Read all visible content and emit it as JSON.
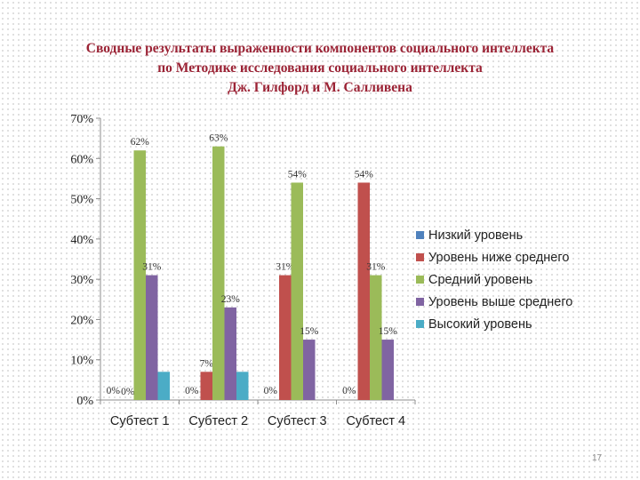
{
  "title_lines": [
    "Сводные результаты выраженности компонентов социального интеллекта",
    "по Методике исследования социального интеллекта",
    "Дж. Гилфорд и М. Салливена"
  ],
  "page_number": "17",
  "chart_data": {
    "type": "bar",
    "title": "",
    "xlabel": "",
    "ylabel": "",
    "ylim": [
      0,
      70
    ],
    "yticks": [
      "0%",
      "10%",
      "20%",
      "30%",
      "40%",
      "50%",
      "60%",
      "70%"
    ],
    "categories": [
      "Субтест 1",
      "Субтест 2",
      "Субтест 3",
      "Субтест 4"
    ],
    "legend_position": "right",
    "grid": false,
    "series": [
      {
        "name": "Низкий уровень",
        "color": "#4f81bd",
        "values": [
          0,
          0,
          0,
          0
        ],
        "labels": [
          "",
          "",
          "",
          ""
        ]
      },
      {
        "name": "Уровень ниже среднего",
        "color": "#c0504d",
        "values": [
          0,
          7,
          31,
          54
        ],
        "labels": [
          "0%",
          "7%",
          "31%",
          "54%"
        ]
      },
      {
        "name": "Средний уровень",
        "color": "#9bbb59",
        "values": [
          62,
          63,
          54,
          31
        ],
        "labels": [
          "62%",
          "63%",
          "54%",
          "31%"
        ]
      },
      {
        "name": "Уровень выше среднего",
        "color": "#8064a2",
        "values": [
          31,
          23,
          15,
          15
        ],
        "labels": [
          "31%",
          "23%",
          "15%",
          "15%"
        ]
      },
      {
        "name": "Высокий уровень",
        "color": "#4bacc6",
        "values": [
          7,
          7,
          0,
          0
        ],
        "labels": [
          "",
          "",
          "",
          ""
        ]
      }
    ],
    "extra_labels": [
      {
        "category_index": 0,
        "series_index": 0,
        "text": "0%"
      },
      {
        "category_index": 1,
        "series_index": 0,
        "text": "0%"
      },
      {
        "category_index": 2,
        "series_index": 0,
        "text": "0%"
      },
      {
        "category_index": 3,
        "series_index": 0,
        "text": "0%"
      }
    ]
  }
}
